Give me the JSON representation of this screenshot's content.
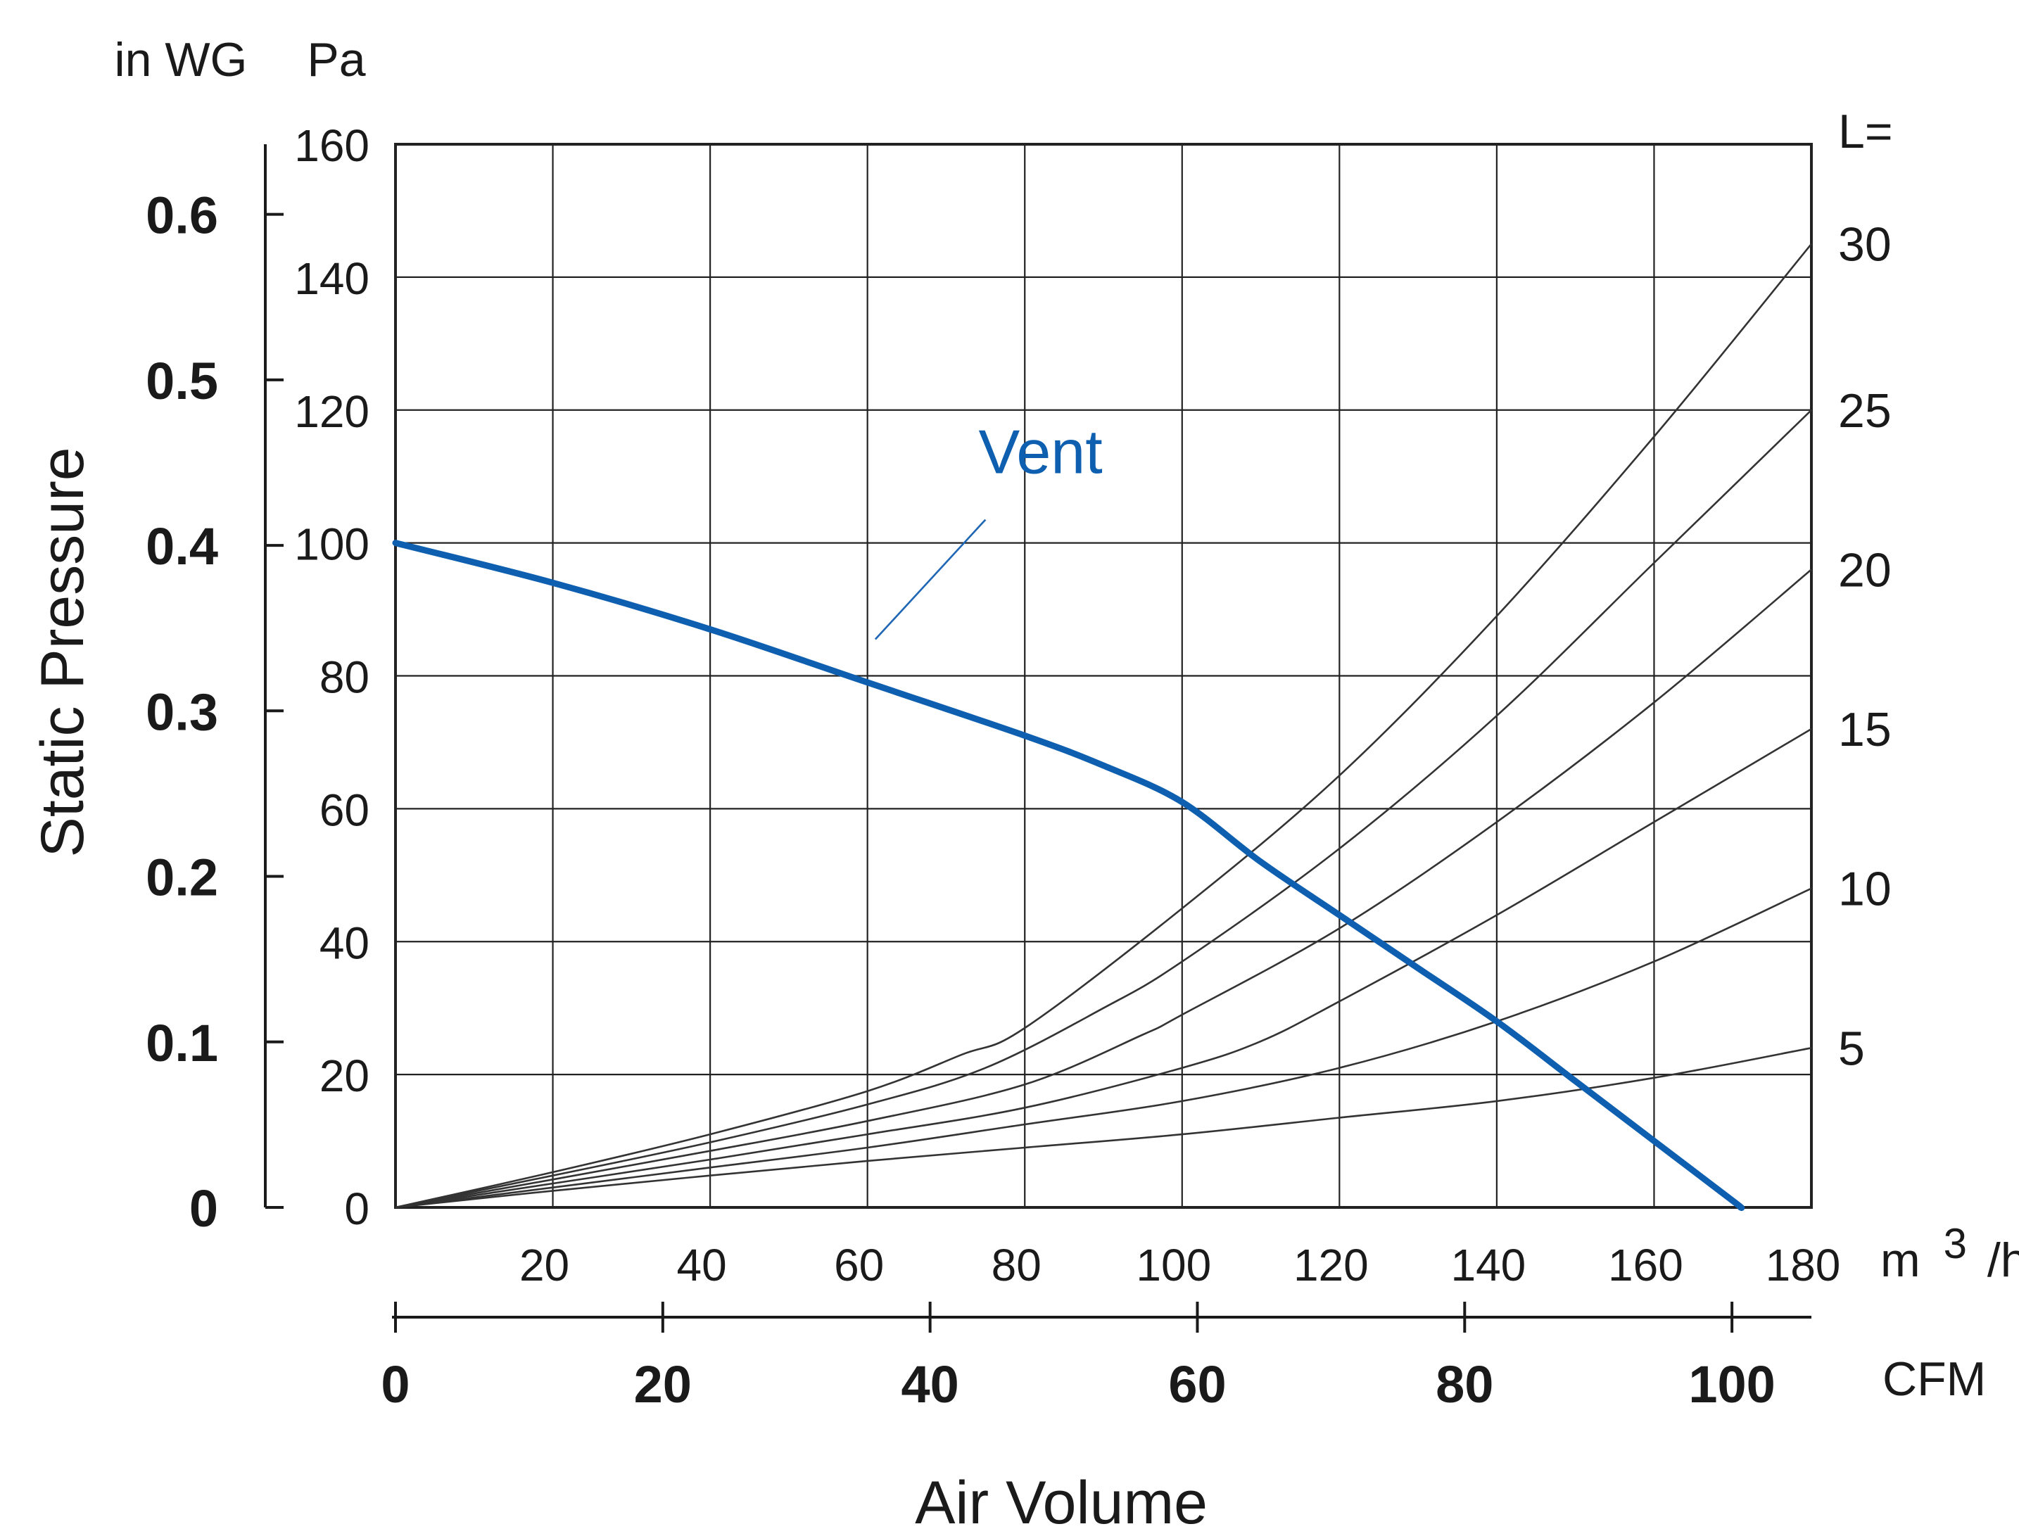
{
  "chart_data": {
    "type": "line",
    "primary_x": {
      "unit_label": "m³/h",
      "unit_base": "m",
      "unit_sup": "3",
      "unit_tail": "/h",
      "ticks": [
        20,
        40,
        60,
        80,
        100,
        120,
        140,
        160,
        180
      ],
      "range": [
        0,
        180
      ]
    },
    "secondary_x": {
      "unit_label": "CFM",
      "ticks": [
        0,
        20,
        40,
        60,
        80,
        100
      ]
    },
    "x_title": "Air Volume",
    "primary_y": {
      "unit_label": "Pa",
      "ticks": [
        0,
        20,
        40,
        60,
        80,
        100,
        120,
        140,
        160
      ],
      "range": [
        0,
        160
      ]
    },
    "secondary_y": {
      "unit_label": "in WG",
      "ticks": [
        "0",
        "0.1",
        "0.2",
        "0.3",
        "0.4",
        "0.5",
        "0.6"
      ]
    },
    "y_title": "Static Pressure",
    "grid": true,
    "right_label_header": "L=",
    "fan_curve": {
      "name": "Vent",
      "color": "#0e5fb0",
      "points": [
        [
          0,
          100
        ],
        [
          20,
          94
        ],
        [
          40,
          87
        ],
        [
          60,
          79
        ],
        [
          80,
          71
        ],
        [
          90,
          66.5
        ],
        [
          100,
          61
        ],
        [
          110,
          52
        ],
        [
          120,
          44
        ],
        [
          130,
          36
        ],
        [
          140,
          28
        ],
        [
          150,
          19
        ],
        [
          160,
          10
        ],
        [
          170,
          1
        ],
        [
          171,
          0
        ]
      ]
    },
    "series": [
      {
        "label": "5",
        "color": "#3d7a3d",
        "points": [
          [
            0,
            0
          ],
          [
            20,
            2.5
          ],
          [
            40,
            4.8
          ],
          [
            60,
            7
          ],
          [
            80,
            9
          ],
          [
            100,
            11
          ],
          [
            120,
            13.5
          ],
          [
            140,
            16
          ],
          [
            160,
            19.5
          ],
          [
            180,
            24
          ]
        ]
      },
      {
        "label": "10",
        "color": "#333333",
        "points": [
          [
            0,
            0
          ],
          [
            20,
            3
          ],
          [
            40,
            6
          ],
          [
            60,
            9
          ],
          [
            80,
            12.5
          ],
          [
            100,
            16
          ],
          [
            120,
            21
          ],
          [
            140,
            28
          ],
          [
            160,
            37
          ],
          [
            180,
            48
          ]
        ]
      },
      {
        "label": "15",
        "color": "#333333",
        "points": [
          [
            0,
            0
          ],
          [
            20,
            3.6
          ],
          [
            40,
            7.2
          ],
          [
            60,
            11
          ],
          [
            80,
            15
          ],
          [
            100,
            21
          ],
          [
            110,
            25
          ],
          [
            120,
            31
          ],
          [
            140,
            44
          ],
          [
            160,
            58
          ],
          [
            180,
            72
          ]
        ]
      },
      {
        "label": "20",
        "color": "#333333",
        "points": [
          [
            0,
            0
          ],
          [
            20,
            4.2
          ],
          [
            40,
            8.5
          ],
          [
            60,
            13
          ],
          [
            80,
            18.5
          ],
          [
            95,
            26
          ],
          [
            100,
            29
          ],
          [
            120,
            42
          ],
          [
            140,
            58
          ],
          [
            160,
            76
          ],
          [
            180,
            96
          ]
        ]
      },
      {
        "label": "25",
        "color": "#333333",
        "points": [
          [
            0,
            0
          ],
          [
            20,
            4.8
          ],
          [
            40,
            9.8
          ],
          [
            60,
            15.5
          ],
          [
            75,
            21
          ],
          [
            90,
            30
          ],
          [
            100,
            37
          ],
          [
            120,
            54
          ],
          [
            140,
            74
          ],
          [
            160,
            97
          ],
          [
            180,
            120
          ]
        ]
      },
      {
        "label": "30",
        "color": "#333333",
        "points": [
          [
            0,
            0
          ],
          [
            20,
            5.3
          ],
          [
            40,
            11
          ],
          [
            60,
            17.5
          ],
          [
            72,
            23
          ],
          [
            80,
            27
          ],
          [
            100,
            45
          ],
          [
            120,
            65
          ],
          [
            140,
            89
          ],
          [
            160,
            116
          ],
          [
            180,
            145
          ]
        ]
      }
    ]
  }
}
